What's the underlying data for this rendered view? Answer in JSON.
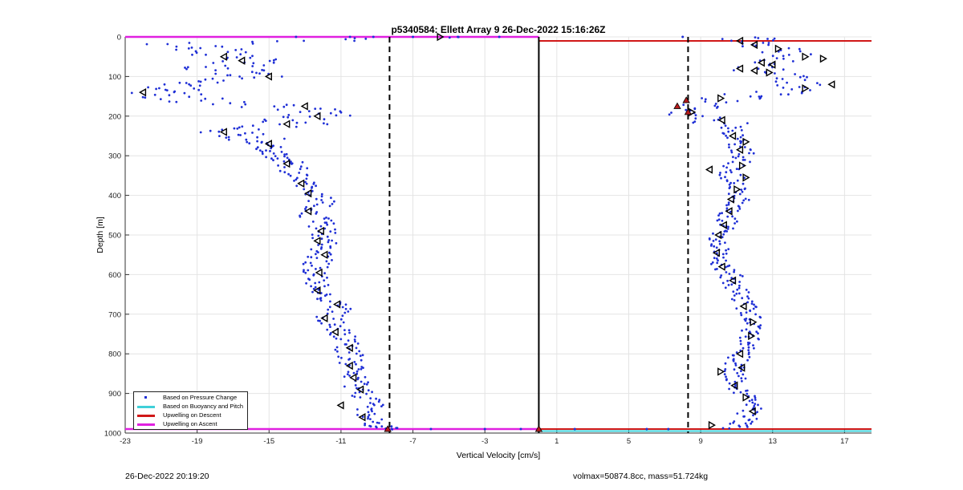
{
  "chart_data": {
    "type": "scatter",
    "title": "p5340584: Ellett Array 9 26-Dec-2022 15:16:26Z",
    "xlabel": "Vertical Velocity [cm/s]",
    "ylabel": "Depth [m]",
    "xlim": [
      -23,
      18.5
    ],
    "ylim": [
      0,
      1000
    ],
    "y_reversed": true,
    "grid": true,
    "x_ticks": [
      -23,
      -19,
      -15,
      -11,
      -7,
      -3,
      1,
      5,
      9,
      13,
      17
    ],
    "y_ticks": [
      0,
      100,
      200,
      300,
      400,
      500,
      600,
      700,
      800,
      900,
      1000
    ],
    "legend": {
      "placement": "bottom-left",
      "entries": [
        {
          "label": "Based on Pressure Change",
          "color": "#1f2fd6",
          "marker": "dot"
        },
        {
          "label": "Based on Buoyancy and Pitch",
          "color": "#3fd0d8",
          "marker": "line"
        },
        {
          "label": "Upwelling on Descent",
          "color": "#d01818",
          "marker": "line"
        },
        {
          "label": "Upwelling on Ascent",
          "color": "#e020e0",
          "marker": "line"
        }
      ]
    },
    "reference_lines": {
      "zero_solid_x": 0,
      "dashed_x": [
        -8.3,
        8.3
      ],
      "ascent_upwelling_depths": [
        0,
        990
      ],
      "descent_upwelling_depths": [
        10,
        990
      ]
    },
    "descent_profile": [
      {
        "depth": 0,
        "velocity": -5.5
      },
      {
        "depth": 20,
        "velocity": -20
      },
      {
        "depth": 40,
        "velocity": -18
      },
      {
        "depth": 60,
        "velocity": -16
      },
      {
        "depth": 80,
        "velocity": -18
      },
      {
        "depth": 100,
        "velocity": -15.5
      },
      {
        "depth": 120,
        "velocity": -19
      },
      {
        "depth": 140,
        "velocity": -22
      },
      {
        "depth": 160,
        "velocity": -19
      },
      {
        "depth": 180,
        "velocity": -13.5
      },
      {
        "depth": 200,
        "velocity": -12.5
      },
      {
        "depth": 220,
        "velocity": -14
      },
      {
        "depth": 240,
        "velocity": -17
      },
      {
        "depth": 260,
        "velocity": -16
      },
      {
        "depth": 280,
        "velocity": -15
      },
      {
        "depth": 300,
        "velocity": -14.5
      },
      {
        "depth": 320,
        "velocity": -13.8
      },
      {
        "depth": 350,
        "velocity": -13.5
      },
      {
        "depth": 380,
        "velocity": -13
      },
      {
        "depth": 410,
        "velocity": -12
      },
      {
        "depth": 440,
        "velocity": -12.7
      },
      {
        "depth": 470,
        "velocity": -12.2
      },
      {
        "depth": 500,
        "velocity": -11.8
      },
      {
        "depth": 530,
        "velocity": -12
      },
      {
        "depth": 560,
        "velocity": -12.2
      },
      {
        "depth": 590,
        "velocity": -12.4
      },
      {
        "depth": 620,
        "velocity": -12.5
      },
      {
        "depth": 650,
        "velocity": -12
      },
      {
        "depth": 680,
        "velocity": -11
      },
      {
        "depth": 710,
        "velocity": -11.7
      },
      {
        "depth": 740,
        "velocity": -11.2
      },
      {
        "depth": 770,
        "velocity": -10.5
      },
      {
        "depth": 800,
        "velocity": -10.6
      },
      {
        "depth": 830,
        "velocity": -10.4
      },
      {
        "depth": 860,
        "velocity": -10.3
      },
      {
        "depth": 890,
        "velocity": -9.9
      },
      {
        "depth": 920,
        "velocity": -9.3
      },
      {
        "depth": 950,
        "velocity": -9.6
      },
      {
        "depth": 980,
        "velocity": -8.9
      },
      {
        "depth": 990,
        "velocity": -8.3
      }
    ],
    "ascent_profile": [
      {
        "depth": 0,
        "velocity": 11
      },
      {
        "depth": 20,
        "velocity": 12.5
      },
      {
        "depth": 50,
        "velocity": 14.5
      },
      {
        "depth": 80,
        "velocity": 12.5
      },
      {
        "depth": 110,
        "velocity": 14.5
      },
      {
        "depth": 140,
        "velocity": 13
      },
      {
        "depth": 160,
        "velocity": 10
      },
      {
        "depth": 190,
        "velocity": 7.5
      },
      {
        "depth": 220,
        "velocity": 10.5
      },
      {
        "depth": 250,
        "velocity": 11
      },
      {
        "depth": 280,
        "velocity": 11.2
      },
      {
        "depth": 310,
        "velocity": 11.5
      },
      {
        "depth": 340,
        "velocity": 10.5
      },
      {
        "depth": 370,
        "velocity": 11
      },
      {
        "depth": 400,
        "velocity": 11.2
      },
      {
        "depth": 430,
        "velocity": 10.8
      },
      {
        "depth": 460,
        "velocity": 10.5
      },
      {
        "depth": 490,
        "velocity": 10.2
      },
      {
        "depth": 520,
        "velocity": 10
      },
      {
        "depth": 550,
        "velocity": 10
      },
      {
        "depth": 580,
        "velocity": 10.1
      },
      {
        "depth": 610,
        "velocity": 10.8
      },
      {
        "depth": 640,
        "velocity": 11
      },
      {
        "depth": 670,
        "velocity": 11.5
      },
      {
        "depth": 700,
        "velocity": 11.7
      },
      {
        "depth": 730,
        "velocity": 11.8
      },
      {
        "depth": 760,
        "velocity": 11.8
      },
      {
        "depth": 790,
        "velocity": 11.3
      },
      {
        "depth": 820,
        "velocity": 11
      },
      {
        "depth": 850,
        "velocity": 10.8
      },
      {
        "depth": 880,
        "velocity": 11
      },
      {
        "depth": 910,
        "velocity": 11.5
      },
      {
        "depth": 940,
        "velocity": 11.8
      },
      {
        "depth": 970,
        "velocity": 11.5
      },
      {
        "depth": 990,
        "velocity": 10.8
      }
    ],
    "triangle_markers": [
      {
        "depth": 0,
        "velocity": -5.5,
        "dir": "right"
      },
      {
        "depth": 50,
        "velocity": -17.5,
        "dir": "left"
      },
      {
        "depth": 60,
        "velocity": -16.5,
        "dir": "left"
      },
      {
        "depth": 100,
        "velocity": -15,
        "dir": "left"
      },
      {
        "depth": 140,
        "velocity": -22,
        "dir": "left"
      },
      {
        "depth": 175,
        "velocity": -13,
        "dir": "left"
      },
      {
        "depth": 200,
        "velocity": -12.3,
        "dir": "left"
      },
      {
        "depth": 220,
        "velocity": -14,
        "dir": "left"
      },
      {
        "depth": 240,
        "velocity": -17.5,
        "dir": "left"
      },
      {
        "depth": 270,
        "velocity": -15,
        "dir": "left"
      },
      {
        "depth": 320,
        "velocity": -14,
        "dir": "left"
      },
      {
        "depth": 370,
        "velocity": -13.2,
        "dir": "left"
      },
      {
        "depth": 395,
        "velocity": -12.8,
        "dir": "left"
      },
      {
        "depth": 440,
        "velocity": -12.8,
        "dir": "left"
      },
      {
        "depth": 490,
        "velocity": -12.1,
        "dir": "left"
      },
      {
        "depth": 515,
        "velocity": -12.3,
        "dir": "left"
      },
      {
        "depth": 550,
        "velocity": -11.9,
        "dir": "left"
      },
      {
        "depth": 595,
        "velocity": -12.2,
        "dir": "left"
      },
      {
        "depth": 640,
        "velocity": -12.3,
        "dir": "left"
      },
      {
        "depth": 675,
        "velocity": -11.2,
        "dir": "left"
      },
      {
        "depth": 710,
        "velocity": -11.9,
        "dir": "left"
      },
      {
        "depth": 745,
        "velocity": -11.3,
        "dir": "left"
      },
      {
        "depth": 785,
        "velocity": -10.5,
        "dir": "left"
      },
      {
        "depth": 830,
        "velocity": -10.5,
        "dir": "left"
      },
      {
        "depth": 860,
        "velocity": -10.3,
        "dir": "left"
      },
      {
        "depth": 890,
        "velocity": -9.9,
        "dir": "left"
      },
      {
        "depth": 930,
        "velocity": -11,
        "dir": "left"
      },
      {
        "depth": 960,
        "velocity": -9.8,
        "dir": "left"
      },
      {
        "depth": 10,
        "velocity": 11.2,
        "dir": "left"
      },
      {
        "depth": 20,
        "velocity": 12,
        "dir": "left"
      },
      {
        "depth": 30,
        "velocity": 13.3,
        "dir": "right"
      },
      {
        "depth": 50,
        "velocity": 14.8,
        "dir": "right"
      },
      {
        "depth": 55,
        "velocity": 15.8,
        "dir": "right"
      },
      {
        "depth": 65,
        "velocity": 12.4,
        "dir": "left"
      },
      {
        "depth": 70,
        "velocity": 13,
        "dir": "left"
      },
      {
        "depth": 80,
        "velocity": 11.2,
        "dir": "left"
      },
      {
        "depth": 85,
        "velocity": 12,
        "dir": "left"
      },
      {
        "depth": 90,
        "velocity": 12.8,
        "dir": "right"
      },
      {
        "depth": 120,
        "velocity": 16.3,
        "dir": "left"
      },
      {
        "depth": 130,
        "velocity": 14.8,
        "dir": "right"
      },
      {
        "depth": 155,
        "velocity": 10.1,
        "dir": "right"
      },
      {
        "depth": 190,
        "velocity": 8.5,
        "dir": "right"
      },
      {
        "depth": 210,
        "velocity": 10.2,
        "dir": "left"
      },
      {
        "depth": 250,
        "velocity": 10.8,
        "dir": "left"
      },
      {
        "depth": 265,
        "velocity": 11.5,
        "dir": "right"
      },
      {
        "depth": 285,
        "velocity": 11.2,
        "dir": "left"
      },
      {
        "depth": 325,
        "velocity": 11.3,
        "dir": "right"
      },
      {
        "depth": 335,
        "velocity": 9.5,
        "dir": "left"
      },
      {
        "depth": 355,
        "velocity": 11.5,
        "dir": "right"
      },
      {
        "depth": 385,
        "velocity": 11,
        "dir": "right"
      },
      {
        "depth": 410,
        "velocity": 10.7,
        "dir": "left"
      },
      {
        "depth": 440,
        "velocity": 10.6,
        "dir": "left"
      },
      {
        "depth": 475,
        "velocity": 10.3,
        "dir": "left"
      },
      {
        "depth": 500,
        "velocity": 10,
        "dir": "left"
      },
      {
        "depth": 545,
        "velocity": 9.9,
        "dir": "left"
      },
      {
        "depth": 580,
        "velocity": 10.2,
        "dir": "left"
      },
      {
        "depth": 615,
        "velocity": 10.8,
        "dir": "left"
      },
      {
        "depth": 680,
        "velocity": 11.4,
        "dir": "left"
      },
      {
        "depth": 720,
        "velocity": 11.9,
        "dir": "right"
      },
      {
        "depth": 755,
        "velocity": 11.8,
        "dir": "right"
      },
      {
        "depth": 800,
        "velocity": 11.2,
        "dir": "left"
      },
      {
        "depth": 835,
        "velocity": 11.3,
        "dir": "left"
      },
      {
        "depth": 845,
        "velocity": 10.1,
        "dir": "right"
      },
      {
        "depth": 880,
        "velocity": 10.9,
        "dir": "left"
      },
      {
        "depth": 910,
        "velocity": 11.5,
        "dir": "right"
      },
      {
        "depth": 945,
        "velocity": 11.9,
        "dir": "left"
      },
      {
        "depth": 980,
        "velocity": 9.6,
        "dir": "right"
      }
    ],
    "red_markers": [
      {
        "depth": 160,
        "velocity": 8.2
      },
      {
        "depth": 175,
        "velocity": 7.7
      },
      {
        "depth": 190,
        "velocity": 8.3
      },
      {
        "depth": 990,
        "velocity": -8.4
      },
      {
        "depth": 990,
        "velocity": 0
      }
    ],
    "surface_points": [
      {
        "depth": 0,
        "velocity": -13.5
      },
      {
        "depth": 0,
        "velocity": -10.5
      },
      {
        "depth": 0,
        "velocity": -9.2
      },
      {
        "depth": 0,
        "velocity": -7
      },
      {
        "depth": 0,
        "velocity": -4.5
      },
      {
        "depth": 0,
        "velocity": -2.2
      },
      {
        "depth": 990,
        "velocity": -6
      },
      {
        "depth": 990,
        "velocity": -3
      },
      {
        "depth": 990,
        "velocity": -1
      },
      {
        "depth": 990,
        "velocity": 2
      },
      {
        "depth": 990,
        "velocity": 6
      },
      {
        "depth": 990,
        "velocity": 7.2
      },
      {
        "depth": 0,
        "velocity": 8
      }
    ]
  },
  "footer": {
    "timestamp": "26-Dec-2022 20:19:20",
    "info": "volmax=50874.8cc, mass=51.724kg"
  }
}
